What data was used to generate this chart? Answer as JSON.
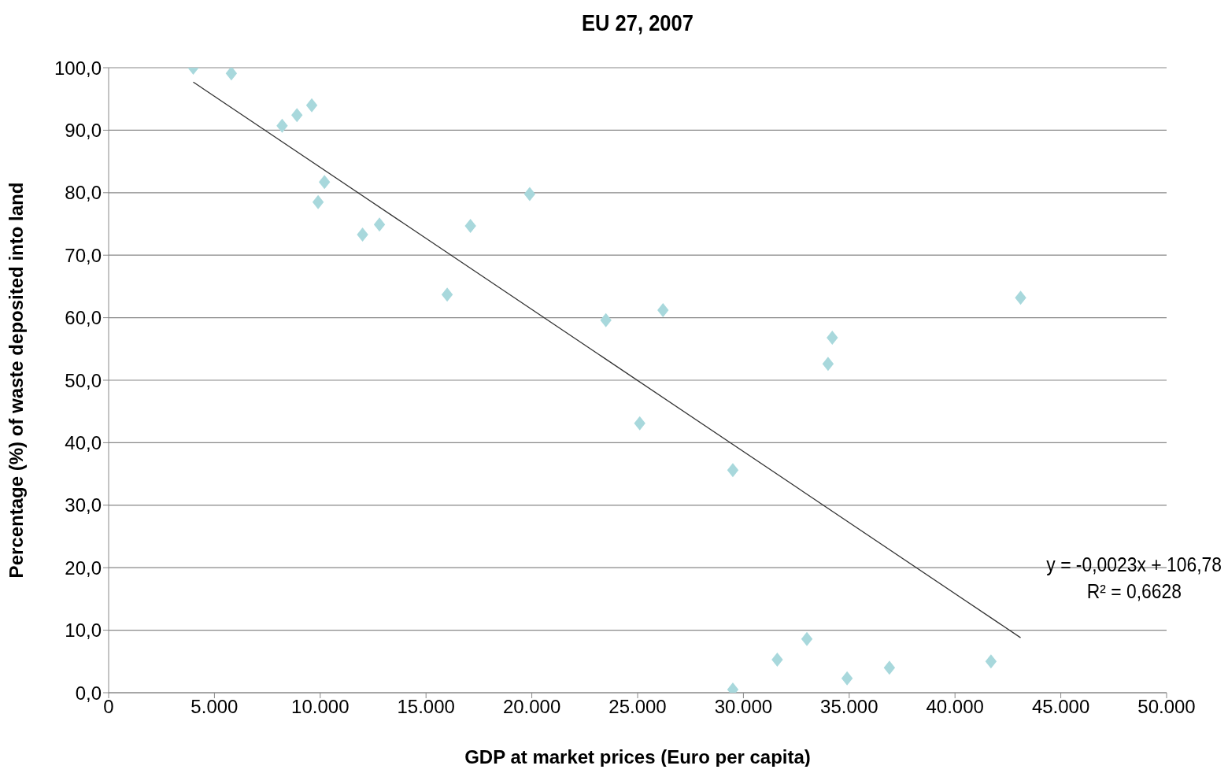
{
  "chart_data": {
    "type": "scatter",
    "title": "EU 27, 2007",
    "xlabel": "GDP at market prices (Euro per capita)",
    "ylabel": "Percentage (%) of waste deposited into land",
    "xlim": [
      0,
      50000
    ],
    "xticks": [
      0,
      {
        "value": 5000,
        "label": "5.000"
      },
      {
        "value": 10000,
        "label": "10.000"
      },
      {
        "value": 15000,
        "label": "15.000"
      },
      {
        "value": 20000,
        "label": "20.000"
      },
      {
        "value": 25000,
        "label": "25.000"
      },
      {
        "value": 30000,
        "label": "30.000"
      },
      {
        "value": 35000,
        "label": "35.000"
      },
      {
        "value": 40000,
        "label": "40.000"
      },
      {
        "value": 45000,
        "label": "45.000"
      },
      {
        "value": 50000,
        "label": "50.000"
      }
    ],
    "ylim": [
      0,
      100
    ],
    "yticks": [
      {
        "value": 0,
        "label": "0,0"
      },
      {
        "value": 10,
        "label": "10,0"
      },
      {
        "value": 20,
        "label": "20,0"
      },
      {
        "value": 30,
        "label": "30,0"
      },
      {
        "value": 40,
        "label": "40,0"
      },
      {
        "value": 50,
        "label": "50,0"
      },
      {
        "value": 60,
        "label": "60,0"
      },
      {
        "value": 70,
        "label": "70,0"
      },
      {
        "value": 80,
        "label": "80,0"
      },
      {
        "value": 90,
        "label": "90,0"
      },
      {
        "value": 100,
        "label": "100,0"
      }
    ],
    "grid": "y",
    "marker": "diamond",
    "series": [
      {
        "color": "#a8d8dc",
        "x": [
          4000,
          5800,
          8200,
          8900,
          9600,
          10200,
          9900,
          12000,
          12800,
          16000,
          17100,
          19900,
          23500,
          25100,
          26200,
          29500,
          29500,
          31600,
          33000,
          34000,
          34200,
          34900,
          36900,
          41700,
          43100
        ],
        "values": [
          100,
          99.1,
          90.7,
          92.4,
          94,
          81.7,
          78.5,
          73.3,
          74.9,
          63.7,
          74.7,
          79.8,
          59.6,
          43.1,
          61.2,
          35.6,
          0.5,
          5.3,
          8.6,
          52.6,
          56.8,
          2.3,
          4,
          5,
          63.2
        ]
      },
      {
        "type": "line",
        "color": "#333333",
        "marker": "none",
        "line_style": "solid",
        "x": [
          4000,
          43100
        ],
        "values": [
          97.7,
          8.8
        ]
      }
    ],
    "annotations": [
      "y = -0,0023x + 106,78",
      "R² = 0,6628"
    ]
  }
}
